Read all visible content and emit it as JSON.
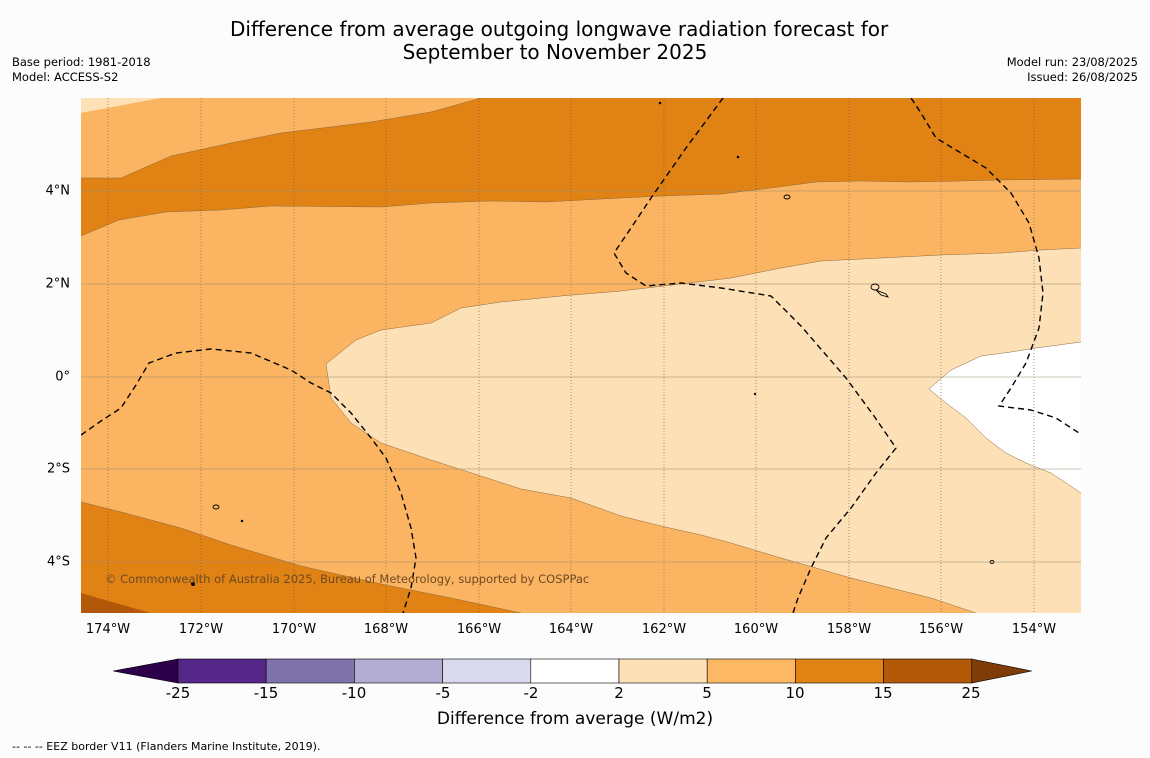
{
  "title": {
    "line1": "Difference from average outgoing longwave radiation forecast for",
    "line2": "September to November 2025"
  },
  "meta_left": {
    "base_period": "Base period: 1981-2018",
    "model": "Model: ACCESS-S2"
  },
  "meta_right": {
    "model_run": "Model run: 23/08/2025",
    "issued": "Issued: 26/08/2025"
  },
  "map": {
    "lat_labels": [
      "4°N",
      "2°N",
      "0°",
      "2°S",
      "4°S"
    ],
    "lon_labels": [
      "174°W",
      "172°W",
      "170°W",
      "168°W",
      "166°W",
      "164°W",
      "162°W",
      "160°W",
      "158°W",
      "156°W",
      "154°W"
    ],
    "copyright": "© Commonwealth of Australia 2025, Bureau of Meteorology, supported by COSPPac",
    "fill_colors": {
      "band_2_5": "#fde0b6",
      "band_5_10": "#fbb562",
      "band_10_15": "#e08214",
      "band_15_25": "#b35806",
      "band_neg2_2": "#ffffff"
    }
  },
  "colorbar": {
    "tick_labels": [
      "-25",
      "-15",
      "-10",
      "-5",
      "-2",
      "2",
      "5",
      "10",
      "15",
      "25"
    ],
    "colors": [
      "#2d004b",
      "#542788",
      "#8073ac",
      "#b2abd2",
      "#d8daeb",
      "#ffffff",
      "#fee0b6",
      "#fdb863",
      "#e08214",
      "#b35806",
      "#7f3b08"
    ],
    "label": "Difference from average (W/m2)"
  },
  "footnote": "--  --  -- EEZ border V11 (Flanders Marine Institute, 2019)."
}
